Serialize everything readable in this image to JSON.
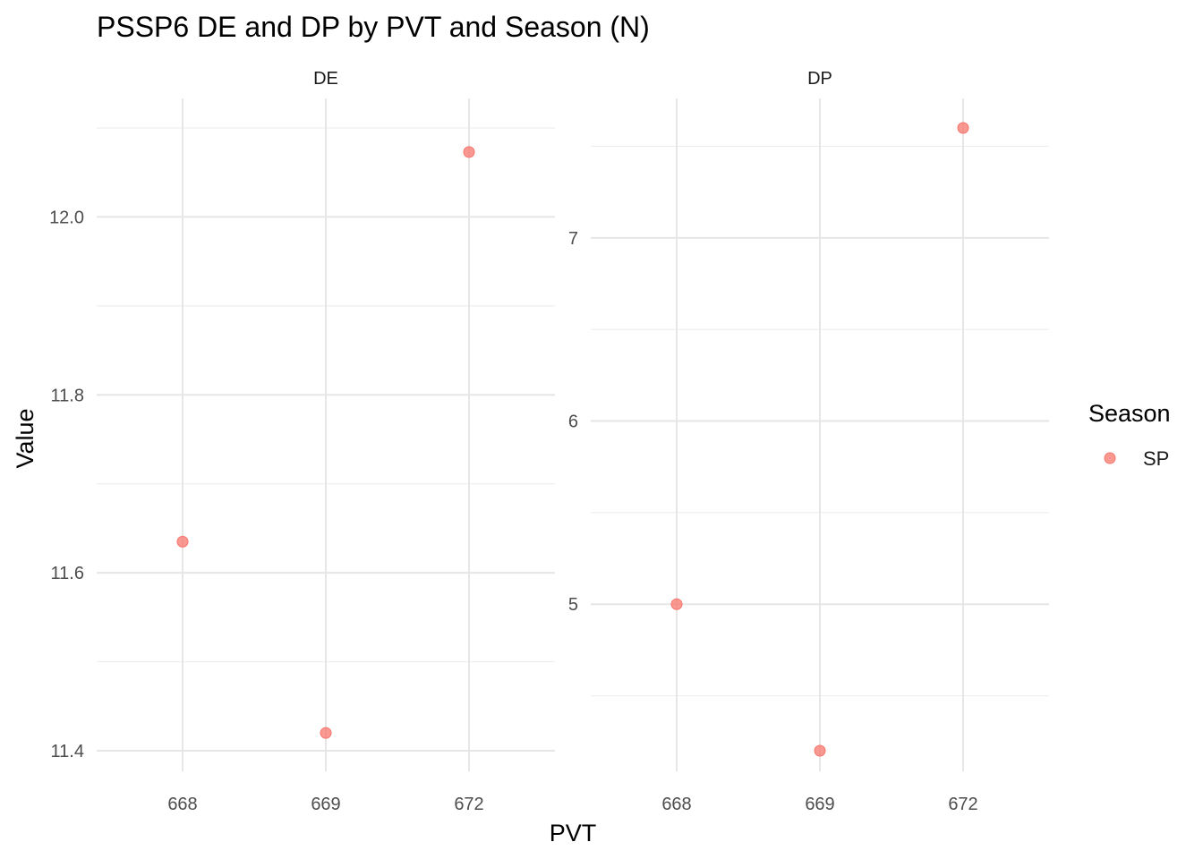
{
  "chart_data": {
    "type": "scatter",
    "title": "PSSP6 DE and DP by PVT and Season (N)",
    "xlabel": "PVT",
    "ylabel": "Value",
    "categories": [
      "668",
      "669",
      "672"
    ],
    "legend": {
      "title": "Season",
      "placement": "right",
      "entries": [
        {
          "label": "SP",
          "color": "#f8766d"
        }
      ]
    },
    "grid": true,
    "point_color": "#f8766d",
    "panels": [
      {
        "name": "DE",
        "ylim": [
          11.4,
          12.1
        ],
        "yticks": [
          "11.4",
          "11.6",
          "11.8",
          "12.0"
        ],
        "points": [
          {
            "x": "668",
            "y": 11.635
          },
          {
            "x": "669",
            "y": 11.42
          },
          {
            "x": "672",
            "y": 12.073
          }
        ]
      },
      {
        "name": "DP",
        "ylim": [
          4.2,
          7.6
        ],
        "yticks": [
          "5",
          "6",
          "7"
        ],
        "points": [
          {
            "x": "668",
            "y": 5.0
          },
          {
            "x": "669",
            "y": 4.2
          },
          {
            "x": "672",
            "y": 7.6
          }
        ]
      }
    ]
  }
}
